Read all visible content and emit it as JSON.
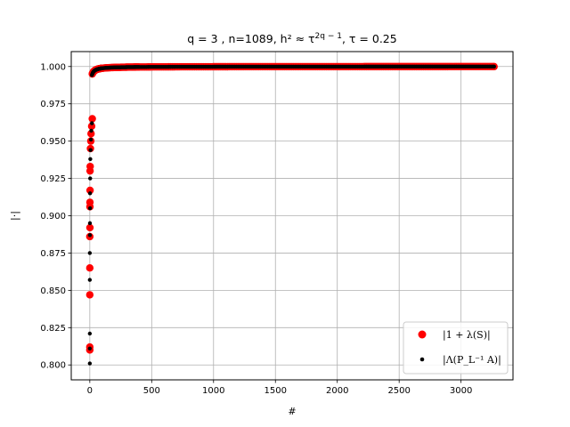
{
  "chart_data": {
    "type": "scatter",
    "title": "q = 3 , n=1089, h² ≈ τ^(2q − 1), τ = 0.25",
    "title_parts": {
      "q": "q = 3 , n=1089, ",
      "h": "h² ≈ τ",
      "exp": "2q − 1",
      "tau": ", τ = 0.25"
    },
    "xlabel": "#",
    "ylabel": "|·|",
    "xlim": [
      -150,
      3420
    ],
    "ylim": [
      0.79,
      1.01
    ],
    "xticks": [
      0,
      500,
      1000,
      1500,
      2000,
      2500,
      3000
    ],
    "yticks": [
      0.8,
      0.825,
      0.85,
      0.875,
      0.9,
      0.925,
      0.95,
      0.975,
      1.0
    ],
    "ytick_labels": [
      "0.800",
      "0.825",
      "0.850",
      "0.875",
      "0.900",
      "0.925",
      "0.950",
      "0.975",
      "1.000"
    ],
    "grid": true,
    "legend_position": "bottom-right",
    "series": [
      {
        "name": "|1 + λ(S)|",
        "color": "#ff0000",
        "marker": "large-dot",
        "x_max": 3267,
        "early_points": [
          {
            "x": 0,
            "y": 0.81
          },
          {
            "x": 0,
            "y": 0.812
          },
          {
            "x": 0,
            "y": 0.847
          },
          {
            "x": 0,
            "y": 0.865
          },
          {
            "x": 0,
            "y": 0.886
          },
          {
            "x": 1,
            "y": 0.892
          },
          {
            "x": 1,
            "y": 0.906
          },
          {
            "x": 1,
            "y": 0.909
          },
          {
            "x": 2,
            "y": 0.917
          },
          {
            "x": 2,
            "y": 0.93
          },
          {
            "x": 3,
            "y": 0.933
          },
          {
            "x": 5,
            "y": 0.945
          },
          {
            "x": 8,
            "y": 0.95
          },
          {
            "x": 10,
            "y": 0.955
          },
          {
            "x": 15,
            "y": 0.96
          },
          {
            "x": 20,
            "y": 0.965
          }
        ]
      },
      {
        "name": "|Λ(P_L⁻¹ A)|",
        "color": "#000000",
        "marker": "small-dot",
        "x_max": 3267,
        "early_points": [
          {
            "x": 0,
            "y": 0.801
          },
          {
            "x": 0,
            "y": 0.811
          },
          {
            "x": 0,
            "y": 0.821
          },
          {
            "x": 0,
            "y": 0.857
          },
          {
            "x": 0,
            "y": 0.875
          },
          {
            "x": 1,
            "y": 0.887
          },
          {
            "x": 1,
            "y": 0.895
          },
          {
            "x": 2,
            "y": 0.905
          },
          {
            "x": 2,
            "y": 0.915
          },
          {
            "x": 3,
            "y": 0.925
          },
          {
            "x": 4,
            "y": 0.938
          },
          {
            "x": 6,
            "y": 0.944
          },
          {
            "x": 9,
            "y": 0.951
          },
          {
            "x": 12,
            "y": 0.957
          },
          {
            "x": 17,
            "y": 0.962
          }
        ]
      }
    ]
  }
}
